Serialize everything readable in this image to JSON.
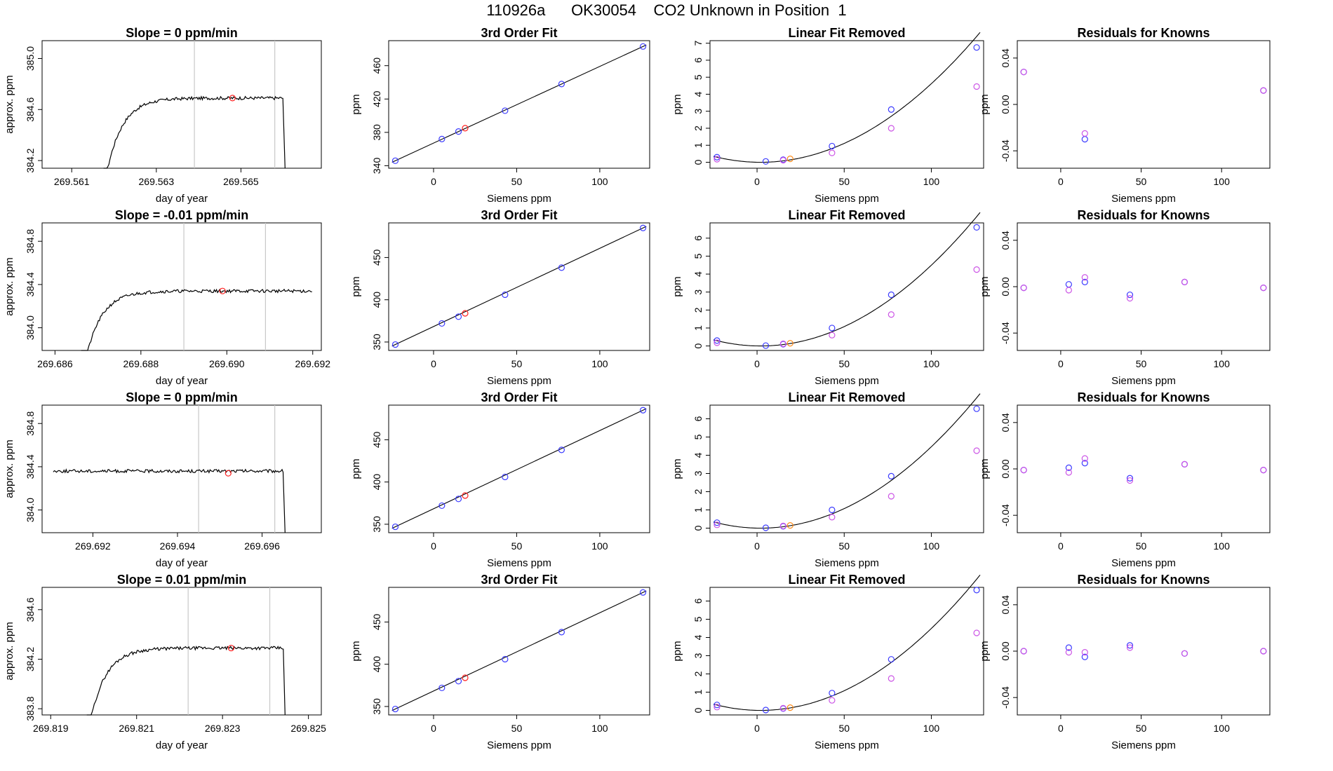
{
  "title": "110926a      OK30054    CO2 Unknown in Position  1",
  "colors": {
    "line": "#000000",
    "blue": "#3b3bff",
    "magenta": "#cc55e6",
    "red": "#ff2020",
    "orange": "#ff8c1a",
    "vline": "#c8c8c8"
  },
  "chart_data": [
    {
      "type": "line",
      "title": "Slope =  0  ppm/min",
      "xlabel": "day of year",
      "ylabel": "approx. ppm",
      "xticks": [
        "269.561",
        "269.563",
        "269.565"
      ],
      "yticks": [
        "384.2",
        "384.6",
        "385.0"
      ],
      "xlim": [
        269.5603,
        269.5669
      ],
      "ylim": [
        384.14,
        385.14
      ],
      "vlines": [
        269.5639,
        269.5658
      ],
      "marker": {
        "x": 269.5648,
        "y": 384.69
      }
    },
    {
      "type": "scatter",
      "title": "3rd Order Fit",
      "xlabel": "Siemens ppm",
      "ylabel": "ppm",
      "xticks": [
        "0",
        "50",
        "100"
      ],
      "yticks": [
        "340",
        "380",
        "420",
        "460"
      ],
      "xlim": [
        -27,
        130
      ],
      "ylim": [
        337,
        490
      ],
      "points": [
        [
          -23,
          346,
          "blue"
        ],
        [
          5,
          372,
          "blue"
        ],
        [
          15,
          381,
          "blue"
        ],
        [
          19,
          385,
          "red"
        ],
        [
          43,
          406,
          "blue"
        ],
        [
          77,
          438,
          "blue"
        ],
        [
          126,
          483,
          "blue"
        ]
      ]
    },
    {
      "type": "scatter",
      "title": "Linear Fit Removed",
      "xlabel": "Siemens ppm",
      "ylabel": "ppm",
      "xticks": [
        "0",
        "50",
        "100"
      ],
      "yticks": [
        "0",
        "1",
        "2",
        "3",
        "4",
        "5",
        "6",
        "7"
      ],
      "xlim": [
        -27,
        130
      ],
      "ylim": [
        -0.35,
        7.15
      ],
      "points": [
        [
          -23,
          0.3,
          "blue"
        ],
        [
          -23,
          0.18,
          "magenta"
        ],
        [
          5,
          0.05,
          "blue"
        ],
        [
          15,
          0.15,
          "blue"
        ],
        [
          15,
          0.12,
          "magenta"
        ],
        [
          19,
          0.2,
          "orange"
        ],
        [
          43,
          0.95,
          "blue"
        ],
        [
          43,
          0.55,
          "magenta"
        ],
        [
          77,
          3.1,
          "blue"
        ],
        [
          77,
          2.0,
          "magenta"
        ],
        [
          126,
          6.75,
          "blue"
        ],
        [
          126,
          4.45,
          "magenta"
        ]
      ],
      "curve": {
        "vertex": 2,
        "a": 0.000481
      }
    },
    {
      "type": "scatter",
      "title": "Residuals for Knowns",
      "xlabel": "Siemens ppm",
      "ylabel": "ppm",
      "xticks": [
        "0",
        "50",
        "100"
      ],
      "yticks": [
        "-0.04",
        "0.00",
        "0.04"
      ],
      "xlim": [
        -27,
        130
      ],
      "ylim": [
        -0.055,
        0.055
      ],
      "points": [
        [
          -23,
          0.028,
          "blue"
        ],
        [
          -23,
          0.028,
          "magenta"
        ],
        [
          15,
          -0.03,
          "blue"
        ],
        [
          15,
          -0.025,
          "magenta"
        ],
        [
          126,
          0.012,
          "blue"
        ],
        [
          126,
          0.012,
          "magenta"
        ]
      ]
    },
    {
      "type": "line",
      "title": "Slope =  -0.01  ppm/min",
      "xlabel": "day of year",
      "ylabel": "approx. ppm",
      "xticks": [
        "269.686",
        "269.688",
        "269.690",
        "269.692"
      ],
      "yticks": [
        "384.0",
        "384.4",
        "384.8"
      ],
      "xlim": [
        269.6857,
        269.6922
      ],
      "ylim": [
        383.79,
        384.97
      ],
      "vlines": [
        269.689,
        269.6909
      ],
      "marker": {
        "x": 269.6899,
        "y": 384.34
      }
    },
    {
      "type": "scatter",
      "title": "3rd Order Fit",
      "xlabel": "Siemens ppm",
      "ylabel": "ppm",
      "xticks": [
        "0",
        "50",
        "100"
      ],
      "yticks": [
        "350",
        "400",
        "450"
      ],
      "xlim": [
        -27,
        130
      ],
      "ylim": [
        340,
        491
      ],
      "points": [
        [
          -23,
          347,
          "blue"
        ],
        [
          5,
          372,
          "blue"
        ],
        [
          15,
          380,
          "blue"
        ],
        [
          19,
          384,
          "red"
        ],
        [
          43,
          406,
          "blue"
        ],
        [
          77,
          438,
          "blue"
        ],
        [
          126,
          485,
          "blue"
        ]
      ]
    },
    {
      "type": "scatter",
      "title": "Linear Fit Removed",
      "xlabel": "Siemens ppm",
      "ylabel": "ppm",
      "xticks": [
        "0",
        "50",
        "100"
      ],
      "yticks": [
        "0",
        "1",
        "2",
        "3",
        "4",
        "5",
        "6"
      ],
      "xlim": [
        -27,
        130
      ],
      "ylim": [
        -0.25,
        6.85
      ],
      "points": [
        [
          -23,
          0.3,
          "blue"
        ],
        [
          -23,
          0.18,
          "magenta"
        ],
        [
          5,
          0.02,
          "blue"
        ],
        [
          15,
          0.1,
          "blue"
        ],
        [
          15,
          0.12,
          "magenta"
        ],
        [
          19,
          0.15,
          "orange"
        ],
        [
          43,
          1.0,
          "blue"
        ],
        [
          43,
          0.6,
          "magenta"
        ],
        [
          77,
          2.85,
          "blue"
        ],
        [
          77,
          1.75,
          "magenta"
        ],
        [
          126,
          6.6,
          "blue"
        ],
        [
          126,
          4.25,
          "magenta"
        ]
      ],
      "curve": {
        "vertex": 2,
        "a": 0.000468
      }
    },
    {
      "type": "scatter",
      "title": "Residuals for Knowns",
      "xlabel": "Siemens ppm",
      "ylabel": "ppm",
      "xticks": [
        "0",
        "50",
        "100"
      ],
      "yticks": [
        "-0.04",
        "0.00",
        "0.04"
      ],
      "xlim": [
        -27,
        130
      ],
      "ylim": [
        -0.055,
        0.055
      ],
      "points": [
        [
          -23,
          -0.001,
          "blue"
        ],
        [
          -23,
          -0.001,
          "magenta"
        ],
        [
          5,
          0.002,
          "blue"
        ],
        [
          5,
          -0.003,
          "magenta"
        ],
        [
          15,
          0.004,
          "blue"
        ],
        [
          15,
          0.008,
          "magenta"
        ],
        [
          43,
          -0.007,
          "blue"
        ],
        [
          43,
          -0.01,
          "magenta"
        ],
        [
          77,
          0.004,
          "blue"
        ],
        [
          77,
          0.004,
          "magenta"
        ],
        [
          126,
          -0.001,
          "blue"
        ],
        [
          126,
          -0.001,
          "magenta"
        ]
      ]
    },
    {
      "type": "line",
      "title": "Slope =  0  ppm/min",
      "xlabel": "day of year",
      "ylabel": "approx. ppm",
      "xticks": [
        "269.692",
        "269.694",
        "269.696"
      ],
      "yticks": [
        "384.0",
        "384.4",
        "384.8"
      ],
      "xlim": [
        269.6908,
        269.6974
      ],
      "ylim": [
        383.79,
        384.97
      ],
      "vlines": [
        269.6945,
        269.6963
      ],
      "marker": {
        "x": 269.6952,
        "y": 384.34
      }
    },
    {
      "type": "scatter",
      "title": "3rd Order Fit",
      "xlabel": "Siemens ppm",
      "ylabel": "ppm",
      "xticks": [
        "0",
        "50",
        "100"
      ],
      "yticks": [
        "350",
        "400",
        "450"
      ],
      "xlim": [
        -27,
        130
      ],
      "ylim": [
        340,
        491
      ],
      "points": [
        [
          -23,
          347,
          "blue"
        ],
        [
          5,
          372,
          "blue"
        ],
        [
          15,
          380,
          "blue"
        ],
        [
          19,
          384,
          "red"
        ],
        [
          43,
          406,
          "blue"
        ],
        [
          77,
          438,
          "blue"
        ],
        [
          126,
          485,
          "blue"
        ]
      ]
    },
    {
      "type": "scatter",
      "title": "Linear Fit Removed",
      "xlabel": "Siemens ppm",
      "ylabel": "ppm",
      "xticks": [
        "0",
        "50",
        "100"
      ],
      "yticks": [
        "0",
        "1",
        "2",
        "3",
        "4",
        "5",
        "6"
      ],
      "xlim": [
        -27,
        130
      ],
      "ylim": [
        -0.25,
        6.75
      ],
      "points": [
        [
          -23,
          0.3,
          "blue"
        ],
        [
          -23,
          0.18,
          "magenta"
        ],
        [
          5,
          0.02,
          "blue"
        ],
        [
          15,
          0.1,
          "blue"
        ],
        [
          15,
          0.12,
          "magenta"
        ],
        [
          19,
          0.15,
          "orange"
        ],
        [
          43,
          1.0,
          "blue"
        ],
        [
          43,
          0.6,
          "magenta"
        ],
        [
          77,
          2.85,
          "blue"
        ],
        [
          77,
          1.75,
          "magenta"
        ],
        [
          126,
          6.55,
          "blue"
        ],
        [
          126,
          4.25,
          "magenta"
        ]
      ],
      "curve": {
        "vertex": 2,
        "a": 0.000465
      }
    },
    {
      "type": "scatter",
      "title": "Residuals for Knowns",
      "xlabel": "Siemens ppm",
      "ylabel": "ppm",
      "xticks": [
        "0",
        "50",
        "100"
      ],
      "yticks": [
        "-0.04",
        "0.00",
        "0.04"
      ],
      "xlim": [
        -27,
        130
      ],
      "ylim": [
        -0.055,
        0.055
      ],
      "points": [
        [
          -23,
          -0.001,
          "blue"
        ],
        [
          -23,
          -0.001,
          "magenta"
        ],
        [
          5,
          0.001,
          "blue"
        ],
        [
          5,
          -0.003,
          "magenta"
        ],
        [
          15,
          0.005,
          "blue"
        ],
        [
          15,
          0.009,
          "magenta"
        ],
        [
          43,
          -0.008,
          "blue"
        ],
        [
          43,
          -0.01,
          "magenta"
        ],
        [
          77,
          0.004,
          "blue"
        ],
        [
          77,
          0.004,
          "magenta"
        ],
        [
          126,
          -0.001,
          "blue"
        ],
        [
          126,
          -0.001,
          "magenta"
        ]
      ]
    },
    {
      "type": "line",
      "title": "Slope =  0.01  ppm/min",
      "xlabel": "day of year",
      "ylabel": "approx. ppm",
      "xticks": [
        "269.819",
        "269.821",
        "269.823",
        "269.825"
      ],
      "yticks": [
        "383.8",
        "384.2",
        "384.6"
      ],
      "xlim": [
        269.8188,
        269.8253
      ],
      "ylim": [
        383.75,
        384.78
      ],
      "vlines": [
        269.8222,
        269.8241
      ],
      "marker": {
        "x": 269.8232,
        "y": 384.29
      }
    },
    {
      "type": "scatter",
      "title": "3rd Order Fit",
      "xlabel": "Siemens ppm",
      "ylabel": "ppm",
      "xticks": [
        "0",
        "50",
        "100"
      ],
      "yticks": [
        "350",
        "400",
        "450"
      ],
      "xlim": [
        -27,
        130
      ],
      "ylim": [
        340,
        491
      ],
      "points": [
        [
          -23,
          347,
          "blue"
        ],
        [
          5,
          372,
          "blue"
        ],
        [
          15,
          380,
          "blue"
        ],
        [
          19,
          384,
          "red"
        ],
        [
          43,
          406,
          "blue"
        ],
        [
          77,
          438,
          "blue"
        ],
        [
          126,
          485,
          "blue"
        ]
      ]
    },
    {
      "type": "scatter",
      "title": "Linear Fit Removed",
      "xlabel": "Siemens ppm",
      "ylabel": "ppm",
      "xticks": [
        "0",
        "50",
        "100"
      ],
      "yticks": [
        "0",
        "1",
        "2",
        "3",
        "4",
        "5",
        "6"
      ],
      "xlim": [
        -27,
        130
      ],
      "ylim": [
        -0.25,
        6.75
      ],
      "points": [
        [
          -23,
          0.3,
          "blue"
        ],
        [
          -23,
          0.18,
          "magenta"
        ],
        [
          5,
          0.02,
          "blue"
        ],
        [
          15,
          0.1,
          "blue"
        ],
        [
          15,
          0.12,
          "magenta"
        ],
        [
          19,
          0.15,
          "orange"
        ],
        [
          43,
          0.95,
          "blue"
        ],
        [
          43,
          0.55,
          "magenta"
        ],
        [
          77,
          2.8,
          "blue"
        ],
        [
          77,
          1.75,
          "magenta"
        ],
        [
          126,
          6.6,
          "blue"
        ],
        [
          126,
          4.25,
          "magenta"
        ]
      ],
      "curve": {
        "vertex": 2,
        "a": 0.000468
      }
    },
    {
      "type": "scatter",
      "title": "Residuals for Knowns",
      "xlabel": "Siemens ppm",
      "ylabel": "ppm",
      "xticks": [
        "0",
        "50",
        "100"
      ],
      "yticks": [
        "-0.04",
        "0.00",
        "0.04"
      ],
      "xlim": [
        -27,
        130
      ],
      "ylim": [
        -0.055,
        0.055
      ],
      "points": [
        [
          -23,
          0.0,
          "blue"
        ],
        [
          -23,
          0.0,
          "magenta"
        ],
        [
          5,
          0.003,
          "blue"
        ],
        [
          5,
          -0.001,
          "magenta"
        ],
        [
          15,
          -0.005,
          "blue"
        ],
        [
          15,
          -0.001,
          "magenta"
        ],
        [
          43,
          0.005,
          "blue"
        ],
        [
          43,
          0.003,
          "magenta"
        ],
        [
          77,
          -0.002,
          "blue"
        ],
        [
          77,
          -0.002,
          "magenta"
        ],
        [
          126,
          0.0,
          "blue"
        ],
        [
          126,
          0.0,
          "magenta"
        ]
      ]
    }
  ]
}
